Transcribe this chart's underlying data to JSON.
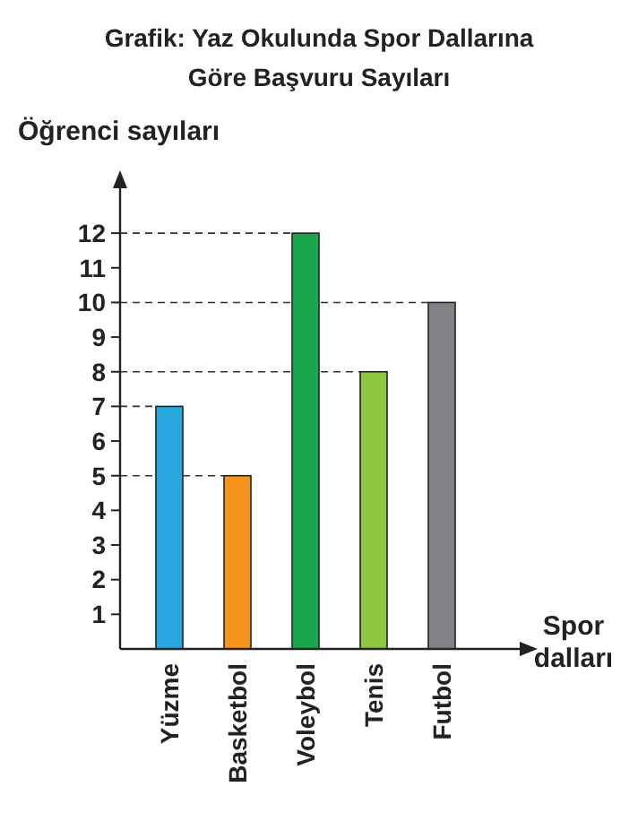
{
  "chart_data": {
    "type": "bar",
    "title": "Grafik: Yaz Okulunda Spor Dallarına Göre Başvuru Sayıları",
    "ylabel": "Öğrenci sayıları",
    "xlabel": "Spor dalları",
    "categories": [
      "Yüzme",
      "Basketbol",
      "Voleybol",
      "Tenis",
      "Futbol"
    ],
    "values": [
      7,
      5,
      12,
      8,
      10
    ],
    "colors": [
      "#29a8e0",
      "#f7941d",
      "#1aa64a",
      "#8dc63f",
      "#808285"
    ],
    "ylim": [
      0,
      13.4
    ],
    "yticks": [
      1,
      2,
      3,
      4,
      5,
      6,
      7,
      8,
      9,
      10,
      11,
      12
    ],
    "ref_lines": [
      {
        "axis": "y",
        "value": 12,
        "line_style": "dashed"
      },
      {
        "axis": "y",
        "value": 10,
        "line_style": "dashed"
      },
      {
        "axis": "y",
        "value": 8,
        "line_style": "dashed"
      },
      {
        "axis": "y",
        "value": 7,
        "line_style": "dashed"
      },
      {
        "axis": "y",
        "value": 5,
        "line_style": "dashed"
      }
    ]
  }
}
